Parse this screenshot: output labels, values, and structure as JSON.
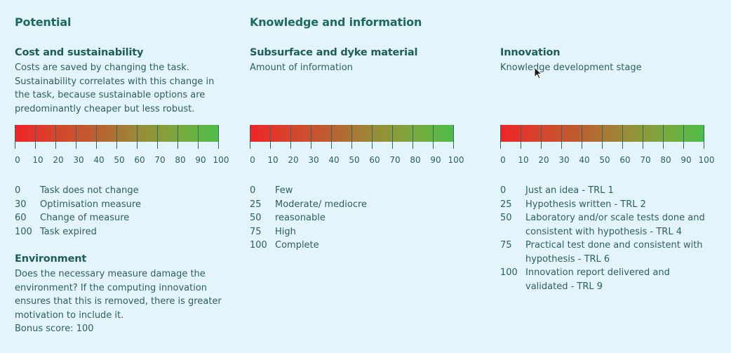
{
  "headings": {
    "potential": "Potential",
    "knowledge": "Knowledge and information"
  },
  "cost": {
    "title": "Cost and sustainability",
    "description": [
      "Costs are saved by changing the task.",
      "Sustainability correlates with this change in",
      "the task, because sustainable options are",
      "predominantly cheaper but less robust."
    ],
    "legend": [
      {
        "value": "0",
        "label": "Task does not change"
      },
      {
        "value": "30",
        "label": "Optimisation measure"
      },
      {
        "value": "60",
        "label": "Change of measure"
      },
      {
        "value": "100",
        "label": "Task expired"
      }
    ]
  },
  "environment": {
    "title": "Environment",
    "description": [
      "Does the necessary measure damage the",
      "environment? If the computing innovation",
      "ensures that this is removed, there is greater",
      "motivation to include it."
    ],
    "bonus": "Bonus score: 100"
  },
  "subsurface": {
    "title": "Subsurface and dyke material",
    "description": [
      "Amount of information"
    ],
    "legend": [
      {
        "value": "0",
        "label": "Few"
      },
      {
        "value": "25",
        "label": "Moderate/ mediocre"
      },
      {
        "value": "50",
        "label": "reasonable"
      },
      {
        "value": "75",
        "label": "High"
      },
      {
        "value": "100",
        "label": "Complete"
      }
    ]
  },
  "innovation": {
    "title": "Innovation",
    "description": [
      "Knowledge development stage"
    ],
    "legend": [
      {
        "value": "0",
        "label": "Just an idea - TRL 1"
      },
      {
        "value": "25",
        "label": "Hypothesis written - TRL 2"
      },
      {
        "value": "50",
        "label": "Laboratory and/or scale tests done and consistent with hypothesis - TRL 4"
      },
      {
        "value": "75",
        "label": "Practical test done and consistent with hypothesis - TRL 6"
      },
      {
        "value": "100",
        "label": "Innovation report delivered and validated - TRL 9"
      }
    ]
  },
  "scale": {
    "ticks": [
      "0",
      "10",
      "20",
      "30",
      "40",
      "50",
      "60",
      "70",
      "80",
      "90",
      "100"
    ],
    "gradient_colors": [
      "#ee2428",
      "#d6452c",
      "#bb5f30",
      "#9a8a37",
      "#7ba83d",
      "#4cbe47"
    ]
  }
}
